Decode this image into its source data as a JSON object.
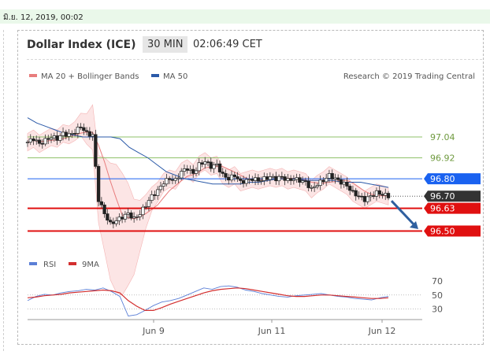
{
  "top": {
    "date_label": "มิ.ย. 12, 2019, 00:02"
  },
  "header": {
    "title": "Dollar Index (ICE)",
    "timeframe": "30 MIN",
    "clock": "02:06:49 CET"
  },
  "legend": {
    "ma20_label": "MA 20 + Bollinger Bands",
    "ma50_label": "MA 50",
    "credit": "Research © 2019 Trading Central",
    "ma20_color": "#e87d7d",
    "ma50_color": "#2b5aa8"
  },
  "rsi_legend": {
    "rsi_label": "RSI",
    "ma_label": "9MA",
    "rsi_color": "#5b7fd6",
    "ma_color": "#d32f2f"
  },
  "chart_data": [
    {
      "type": "line",
      "subtype": "candlestick",
      "title": "Dollar Index (ICE)",
      "ylim": [
        96.38,
        97.32
      ],
      "x_ticks": [
        "Jun 9",
        "Jun 11",
        "Jun 12"
      ],
      "levels": [
        {
          "value": 97.04,
          "label": "97.04",
          "kind": "resistance",
          "color": "#8fc26a"
        },
        {
          "value": 96.92,
          "label": "96.92",
          "kind": "resistance",
          "color": "#8fc26a"
        },
        {
          "value": 96.8,
          "label": "96.80",
          "kind": "pivot",
          "color": "#1a62f0"
        },
        {
          "value": 96.7,
          "label": "96.70",
          "kind": "last_price",
          "color": "#333333"
        },
        {
          "value": 96.63,
          "label": "96.63",
          "kind": "support",
          "color": "#e01010"
        },
        {
          "value": 96.5,
          "label": "96.50",
          "kind": "target",
          "color": "#e01010"
        }
      ],
      "price_path": [
        97.01,
        97.03,
        97.0,
        97.02,
        97.04,
        97.03,
        97.06,
        97.05,
        97.07,
        97.1,
        97.06,
        97.05,
        96.68,
        96.6,
        96.54,
        96.56,
        96.58,
        96.6,
        96.57,
        96.6,
        96.65,
        96.7,
        96.73,
        96.78,
        96.8,
        96.79,
        96.84,
        96.86,
        96.83,
        96.88,
        96.9,
        96.87,
        96.88,
        96.82,
        96.8,
        96.82,
        96.78,
        96.79,
        96.8,
        96.79,
        96.8,
        96.81,
        96.8,
        96.81,
        96.79,
        96.8,
        96.79,
        96.78,
        96.74,
        96.77,
        96.79,
        96.82,
        96.8,
        96.78,
        96.76,
        96.72,
        96.7,
        96.68,
        96.7,
        96.72,
        96.71,
        96.7
      ],
      "ma50_path": [
        97.15,
        97.12,
        97.1,
        97.08,
        97.06,
        97.05,
        97.04,
        97.04,
        97.04,
        97.04,
        97.03,
        96.98,
        96.95,
        96.92,
        96.88,
        96.84,
        96.82,
        96.8,
        96.79,
        96.78,
        96.77,
        96.77,
        96.77,
        96.77,
        96.78,
        96.78,
        96.79,
        96.8,
        96.8,
        96.8,
        96.79,
        96.79,
        96.79,
        96.79,
        96.78,
        96.78,
        96.78,
        96.77,
        96.76,
        96.75
      ],
      "projection": {
        "from": 96.7,
        "to": 96.52
      }
    },
    {
      "type": "line",
      "title": "RSI",
      "ylim": [
        15,
        80
      ],
      "y_ticks": [
        "70",
        "50",
        "30"
      ],
      "series": [
        {
          "name": "RSI",
          "values": [
            42,
            48,
            51,
            50,
            53,
            55,
            56,
            58,
            57,
            60,
            55,
            48,
            20,
            22,
            28,
            35,
            40,
            42,
            45,
            50,
            55,
            60,
            58,
            62,
            63,
            61,
            57,
            55,
            52,
            50,
            48,
            47,
            49,
            50,
            51,
            52,
            50,
            48,
            47,
            45,
            44,
            43,
            46,
            48
          ]
        },
        {
          "name": "9MA",
          "values": [
            46,
            47,
            49,
            50,
            51,
            53,
            54,
            55,
            56,
            57,
            56,
            53,
            42,
            34,
            28,
            28,
            32,
            37,
            41,
            45,
            49,
            53,
            56,
            58,
            59,
            60,
            59,
            57,
            55,
            53,
            51,
            49,
            48,
            48,
            49,
            50,
            50,
            49,
            48,
            47,
            46,
            45,
            45,
            46
          ]
        }
      ]
    }
  ]
}
